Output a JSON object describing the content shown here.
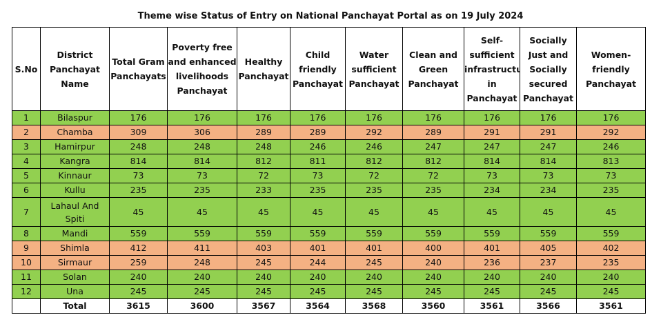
{
  "title": "Theme wise Status of Entry on National Panchayat Portal as on 19 July 2024",
  "colors": {
    "green": "#92d050",
    "orange": "#f4b183"
  },
  "columns": [
    "S.No",
    "District Panchayat Name",
    "Total Gram Panchayats",
    "Poverty free and enhanced livelihoods Panchayat",
    "Healthy Panchayat",
    "Child friendly Panchayat",
    "Water sufficient Panchayat",
    "Clean and Green Panchayat",
    "Self-sufficient infrastructure in Panchayat",
    "Socially Just and Socially secured Panchayat",
    "Women-friendly Panchayat"
  ],
  "rows": [
    {
      "status": "green",
      "cells": [
        "1",
        "Bilaspur",
        "176",
        "176",
        "176",
        "176",
        "176",
        "176",
        "176",
        "176",
        "176"
      ]
    },
    {
      "status": "orange",
      "cells": [
        "2",
        "Chamba",
        "309",
        "306",
        "289",
        "289",
        "292",
        "289",
        "291",
        "291",
        "292"
      ]
    },
    {
      "status": "green",
      "cells": [
        "3",
        "Hamirpur",
        "248",
        "248",
        "248",
        "246",
        "246",
        "247",
        "247",
        "247",
        "246"
      ]
    },
    {
      "status": "green",
      "cells": [
        "4",
        "Kangra",
        "814",
        "814",
        "812",
        "811",
        "812",
        "812",
        "814",
        "814",
        "813"
      ]
    },
    {
      "status": "green",
      "cells": [
        "5",
        "Kinnaur",
        "73",
        "73",
        "72",
        "73",
        "72",
        "72",
        "73",
        "73",
        "73"
      ]
    },
    {
      "status": "green",
      "cells": [
        "6",
        "Kullu",
        "235",
        "235",
        "233",
        "235",
        "235",
        "235",
        "234",
        "234",
        "235"
      ]
    },
    {
      "status": "green",
      "cells": [
        "7",
        "Lahaul And Spiti",
        "45",
        "45",
        "45",
        "45",
        "45",
        "45",
        "45",
        "45",
        "45"
      ]
    },
    {
      "status": "green",
      "cells": [
        "8",
        "Mandi",
        "559",
        "559",
        "559",
        "559",
        "559",
        "559",
        "559",
        "559",
        "559"
      ]
    },
    {
      "status": "orange",
      "cells": [
        "9",
        "Shimla",
        "412",
        "411",
        "403",
        "401",
        "401",
        "400",
        "401",
        "405",
        "402"
      ]
    },
    {
      "status": "orange",
      "cells": [
        "10",
        "Sirmaur",
        "259",
        "248",
        "245",
        "244",
        "245",
        "240",
        "236",
        "237",
        "235"
      ]
    },
    {
      "status": "green",
      "cells": [
        "11",
        "Solan",
        "240",
        "240",
        "240",
        "240",
        "240",
        "240",
        "240",
        "240",
        "240"
      ]
    },
    {
      "status": "green",
      "cells": [
        "12",
        "Una",
        "245",
        "245",
        "245",
        "245",
        "245",
        "245",
        "245",
        "245",
        "245"
      ]
    }
  ],
  "total": [
    "",
    "Total",
    "3615",
    "3600",
    "3567",
    "3564",
    "3568",
    "3560",
    "3561",
    "3566",
    "3561"
  ]
}
